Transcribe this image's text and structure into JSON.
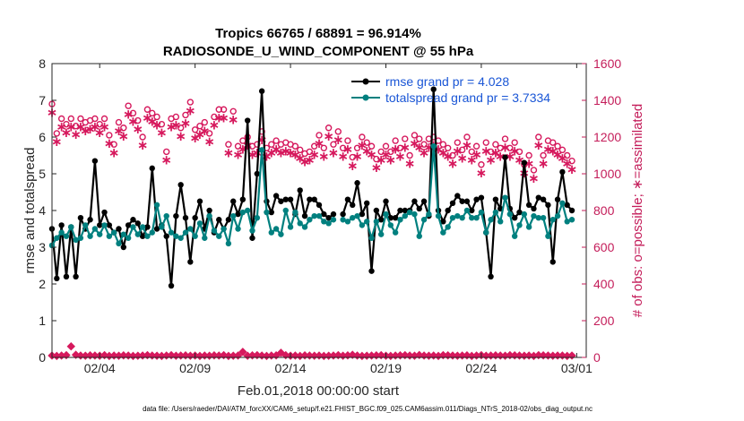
{
  "chart_data": {
    "type": "line",
    "title": "Tropics 66765 / 68891 = 96.914%",
    "subtitle": "RADIOSONDE_U_WIND_COMPONENT @ 55 hPa",
    "xlabel": "Feb.01,2018 00:00:00 start",
    "ylabel": "rmse and totalspread",
    "y2label": "# of obs: o=possible; ∗=assimilated",
    "footnote": "data file: /Users/raeder/DAI/ATM_forcXX/CAM6_setup/f.e21.FHIST_BGC.f09_025.CAM6assim.011/Diags_NTrS_2018-02/obs_diag_output.nc",
    "xlim": [
      1,
      29
    ],
    "ylim": [
      0,
      8
    ],
    "y2lim": [
      0,
      1600
    ],
    "xticks": [
      3.5,
      8.5,
      13.5,
      18.5,
      23.5,
      28.5
    ],
    "xticklabels": [
      "02/04",
      "02/09",
      "02/14",
      "02/19",
      "02/24",
      "03/01"
    ],
    "yticks": [
      0,
      1,
      2,
      3,
      4,
      5,
      6,
      7,
      8
    ],
    "y2ticks": [
      0,
      200,
      400,
      600,
      800,
      1000,
      1200,
      1400,
      1600
    ],
    "grid": false,
    "legend_location": "top-right",
    "colors": {
      "rmse": "#000000",
      "spread": "#00807f",
      "obs": "#d6195d",
      "axis_right": "#c41d5a",
      "legend_text": "#1a56d6"
    },
    "series": [
      {
        "name": "rmse grand pr = 4.028",
        "key": "rmse",
        "x": [
          1.0,
          1.25,
          1.5,
          1.75,
          2.0,
          2.25,
          2.5,
          2.75,
          3.0,
          3.25,
          3.5,
          3.75,
          4.0,
          4.25,
          4.5,
          4.75,
          5.0,
          5.25,
          5.5,
          5.75,
          6.0,
          6.25,
          6.5,
          6.75,
          7.0,
          7.25,
          7.5,
          7.75,
          8.0,
          8.25,
          8.5,
          8.75,
          9.0,
          9.25,
          9.5,
          9.75,
          10.0,
          10.25,
          10.5,
          10.75,
          11.0,
          11.25,
          11.5,
          11.75,
          12.0,
          12.25,
          12.5,
          12.75,
          13.0,
          13.25,
          13.5,
          13.75,
          14.0,
          14.25,
          14.5,
          14.75,
          15.0,
          15.25,
          15.5,
          15.75,
          16.0,
          16.25,
          16.5,
          16.75,
          17.0,
          17.25,
          17.5,
          17.75,
          18.0,
          18.25,
          18.5,
          18.75,
          19.0,
          19.25,
          19.5,
          19.75,
          20.0,
          20.25,
          20.5,
          20.75,
          21.0,
          21.25,
          21.5,
          21.75,
          22.0,
          22.25,
          22.5,
          22.75,
          23.0,
          23.25,
          23.5,
          23.75,
          24.0,
          24.25,
          24.5,
          24.75,
          25.0,
          25.25,
          25.5,
          25.75,
          26.0,
          26.25,
          26.5,
          26.75,
          27.0,
          27.25,
          27.5,
          27.75,
          28.0,
          28.25
        ],
        "y": [
          3.5,
          2.15,
          3.6,
          2.2,
          3.55,
          2.2,
          3.8,
          3.5,
          3.75,
          5.35,
          3.6,
          3.95,
          3.6,
          3.4,
          3.5,
          3.0,
          3.6,
          3.75,
          3.65,
          3.3,
          3.55,
          5.15,
          3.5,
          3.6,
          3.3,
          1.95,
          3.85,
          4.7,
          3.8,
          2.6,
          3.8,
          4.25,
          3.5,
          4.0,
          3.4,
          3.75,
          3.5,
          3.75,
          4.25,
          3.9,
          4.3,
          6.45,
          3.25,
          5.0,
          7.25,
          4.25,
          3.95,
          4.4,
          4.25,
          4.3,
          4.3,
          3.9,
          4.55,
          3.85,
          4.3,
          4.3,
          4.15,
          3.9,
          3.8,
          3.9,
          null,
          3.9,
          4.3,
          4.15,
          4.75,
          3.9,
          4.2,
          2.35,
          4.0,
          3.75,
          4.25,
          3.8,
          3.8,
          4.0,
          4.0,
          4.0,
          4.25,
          4.05,
          4.25,
          3.85,
          7.3,
          4.0,
          3.7,
          4.0,
          4.2,
          4.4,
          4.25,
          4.25,
          4.0,
          4.3,
          4.35,
          3.4,
          2.2,
          4.3,
          4.05,
          5.45,
          4.05,
          3.8,
          3.95,
          5.3,
          4.15,
          4.05,
          4.35,
          4.3,
          4.15,
          2.6,
          4.3,
          5.05,
          4.15,
          4.0
        ]
      },
      {
        "name": "totalspread grand pr = 3.7334",
        "key": "spread",
        "x": [
          1.0,
          1.25,
          1.5,
          1.75,
          2.0,
          2.25,
          2.5,
          2.75,
          3.0,
          3.25,
          3.5,
          3.75,
          4.0,
          4.25,
          4.5,
          4.75,
          5.0,
          5.25,
          5.5,
          5.75,
          6.0,
          6.25,
          6.5,
          6.75,
          7.0,
          7.25,
          7.5,
          7.75,
          8.0,
          8.25,
          8.5,
          8.75,
          9.0,
          9.25,
          9.5,
          9.75,
          10.0,
          10.25,
          10.5,
          10.75,
          11.0,
          11.25,
          11.5,
          11.75,
          12.0,
          12.25,
          12.5,
          12.75,
          13.0,
          13.25,
          13.5,
          13.75,
          14.0,
          14.25,
          14.5,
          14.75,
          15.0,
          15.25,
          15.5,
          15.75,
          16.0,
          16.25,
          16.5,
          16.75,
          17.0,
          17.25,
          17.5,
          17.75,
          18.0,
          18.25,
          18.5,
          18.75,
          19.0,
          19.25,
          19.5,
          19.75,
          20.0,
          20.25,
          20.5,
          20.75,
          21.0,
          21.25,
          21.5,
          21.75,
          22.0,
          22.25,
          22.5,
          22.75,
          23.0,
          23.25,
          23.5,
          23.75,
          24.0,
          24.25,
          24.5,
          24.75,
          25.0,
          25.25,
          25.5,
          25.75,
          26.0,
          26.25,
          26.5,
          26.75,
          27.0,
          27.25,
          27.5,
          27.75,
          28.0,
          28.25
        ],
        "y": [
          3.05,
          3.25,
          3.4,
          3.3,
          3.55,
          3.2,
          3.25,
          3.6,
          3.3,
          3.5,
          3.35,
          3.6,
          3.3,
          3.4,
          3.1,
          3.35,
          3.25,
          3.55,
          3.35,
          3.55,
          3.3,
          3.4,
          4.15,
          3.55,
          3.85,
          3.4,
          3.3,
          3.25,
          3.4,
          3.5,
          3.3,
          3.65,
          3.25,
          3.85,
          3.45,
          3.3,
          3.5,
          3.1,
          3.85,
          3.5,
          3.95,
          4.0,
          3.45,
          3.8,
          5.65,
          3.95,
          3.4,
          3.5,
          3.35,
          4.0,
          3.55,
          3.95,
          3.65,
          3.55,
          3.75,
          3.85,
          3.85,
          3.7,
          3.65,
          3.75,
          null,
          3.75,
          3.7,
          3.8,
          3.85,
          3.6,
          3.7,
          3.25,
          3.7,
          3.35,
          3.9,
          3.6,
          3.4,
          3.75,
          3.85,
          3.95,
          3.9,
          3.3,
          3.75,
          3.9,
          5.75,
          3.85,
          3.4,
          3.55,
          3.8,
          3.85,
          3.8,
          4.0,
          3.8,
          3.8,
          3.95,
          3.4,
          3.75,
          3.95,
          3.7,
          4.35,
          3.9,
          3.3,
          3.6,
          3.9,
          3.55,
          3.85,
          3.8,
          3.8,
          3.3,
          3.75,
          3.85,
          4.2,
          3.7,
          3.75
        ]
      },
      {
        "name": "obs possible",
        "key": "possible",
        "axis": "right",
        "x": [
          1.0,
          1.25,
          1.5,
          1.75,
          2.0,
          2.25,
          2.5,
          2.75,
          3.0,
          3.25,
          3.5,
          3.75,
          4.0,
          4.25,
          4.5,
          4.75,
          5.0,
          5.25,
          5.5,
          5.75,
          6.0,
          6.25,
          6.5,
          6.75,
          7.0,
          7.25,
          7.5,
          7.75,
          8.0,
          8.25,
          8.5,
          8.75,
          9.0,
          9.25,
          9.5,
          9.75,
          10.0,
          10.25,
          10.5,
          10.75,
          11.0,
          11.25,
          11.5,
          11.75,
          12.0,
          12.25,
          12.5,
          12.75,
          13.0,
          13.25,
          13.5,
          13.75,
          14.0,
          14.25,
          14.5,
          14.75,
          15.0,
          15.25,
          15.5,
          15.75,
          16.0,
          16.25,
          16.5,
          16.75,
          17.0,
          17.25,
          17.5,
          17.75,
          18.0,
          18.25,
          18.5,
          18.75,
          19.0,
          19.25,
          19.5,
          19.75,
          20.0,
          20.25,
          20.5,
          20.75,
          21.0,
          21.25,
          21.5,
          21.75,
          22.0,
          22.25,
          22.5,
          22.75,
          23.0,
          23.25,
          23.5,
          23.75,
          24.0,
          24.25,
          24.5,
          24.75,
          25.0,
          25.25,
          25.5,
          25.75,
          26.0,
          26.25,
          26.5,
          26.75,
          27.0,
          27.25,
          27.5,
          27.75,
          28.0,
          28.25
        ],
        "y": [
          1380,
          1220,
          1300,
          1270,
          1300,
          1260,
          1300,
          1280,
          1290,
          1300,
          1270,
          1300,
          1210,
          1160,
          1280,
          1250,
          1370,
          1330,
          1290,
          1200,
          1350,
          1330,
          1310,
          1270,
          1120,
          1300,
          1310,
          1250,
          1320,
          1390,
          1240,
          1260,
          1280,
          1220,
          1310,
          1350,
          1350,
          1160,
          1340,
          1150,
          1180,
          1200,
          1150,
          1160,
          1230,
          1140,
          1160,
          1180,
          1160,
          1170,
          1160,
          1150,
          1130,
          1110,
          1120,
          1150,
          1210,
          1140,
          1250,
          1160,
          1230,
          1140,
          1180,
          1090,
          1140,
          1200,
          1170,
          1150,
          1080,
          1120,
          1150,
          1120,
          1180,
          1140,
          1190,
          1100,
          1210,
          1190,
          1160,
          1190,
          1200,
          1180,
          1160,
          1140,
          1100,
          1170,
          1130,
          1200,
          1120,
          1150,
          1050,
          1170,
          1120,
          1160,
          1140,
          1190,
          1140,
          1170,
          1120,
          1050,
          1100,
          1020,
          1200,
          1100,
          1180,
          1170,
          1150,
          1130,
          1100,
          1070
        ]
      },
      {
        "name": "obs assimilated",
        "key": "assimilated",
        "axis": "right",
        "x": [
          1.0,
          1.25,
          1.5,
          1.75,
          2.0,
          2.25,
          2.5,
          2.75,
          3.0,
          3.25,
          3.5,
          3.75,
          4.0,
          4.25,
          4.5,
          4.75,
          5.0,
          5.25,
          5.5,
          5.75,
          6.0,
          6.25,
          6.5,
          6.75,
          7.0,
          7.25,
          7.5,
          7.75,
          8.0,
          8.25,
          8.5,
          8.75,
          9.0,
          9.25,
          9.5,
          9.75,
          10.0,
          10.25,
          10.5,
          10.75,
          11.0,
          11.25,
          11.5,
          11.75,
          12.0,
          12.25,
          12.5,
          12.75,
          13.0,
          13.25,
          13.5,
          13.75,
          14.0,
          14.25,
          14.5,
          14.75,
          15.0,
          15.25,
          15.5,
          15.75,
          16.0,
          16.25,
          16.5,
          16.75,
          17.0,
          17.25,
          17.5,
          17.75,
          18.0,
          18.25,
          18.5,
          18.75,
          19.0,
          19.25,
          19.5,
          19.75,
          20.0,
          20.25,
          20.5,
          20.75,
          21.0,
          21.25,
          21.5,
          21.75,
          22.0,
          22.25,
          22.5,
          22.75,
          23.0,
          23.25,
          23.5,
          23.75,
          24.0,
          24.25,
          24.5,
          24.75,
          25.0,
          25.25,
          25.5,
          25.75,
          26.0,
          26.25,
          26.5,
          26.75,
          27.0,
          27.25,
          27.5,
          27.75,
          28.0,
          28.25
        ],
        "y": [
          1340,
          1180,
          1260,
          1230,
          1260,
          1220,
          1260,
          1240,
          1250,
          1260,
          1230,
          1260,
          1170,
          1120,
          1240,
          1210,
          1330,
          1290,
          1250,
          1160,
          1310,
          1290,
          1270,
          1230,
          1080,
          1260,
          1270,
          1210,
          1280,
          1350,
          1200,
          1220,
          1240,
          1180,
          1270,
          1310,
          1310,
          1120,
          1300,
          1110,
          1140,
          1160,
          1110,
          1120,
          1190,
          1100,
          1120,
          1140,
          1120,
          1130,
          1120,
          1110,
          1090,
          1070,
          1080,
          1110,
          1170,
          1100,
          1210,
          1120,
          1190,
          1100,
          1140,
          1050,
          1100,
          1160,
          1130,
          1110,
          1040,
          1080,
          1110,
          1080,
          1140,
          1100,
          1150,
          1060,
          1170,
          1150,
          1120,
          1150,
          1160,
          1140,
          1120,
          1100,
          1060,
          1130,
          1090,
          1160,
          1080,
          1110,
          1010,
          1130,
          1080,
          1120,
          1100,
          1150,
          1100,
          1130,
          1080,
          1010,
          1060,
          980,
          1160,
          1060,
          1140,
          1130,
          1110,
          1090,
          1060,
          1030
        ]
      },
      {
        "name": "obs rejected",
        "key": "rejected",
        "axis": "right",
        "x": [
          1.0,
          1.25,
          1.5,
          1.75,
          2.0,
          2.25,
          2.5,
          2.75,
          3.0,
          3.25,
          3.5,
          3.75,
          4.0,
          4.25,
          4.5,
          4.75,
          5.0,
          5.25,
          5.5,
          5.75,
          6.0,
          6.25,
          6.5,
          6.75,
          7.0,
          7.25,
          7.5,
          7.75,
          8.0,
          8.25,
          8.5,
          8.75,
          9.0,
          9.25,
          9.5,
          9.75,
          10.0,
          10.25,
          10.5,
          10.75,
          11.0,
          11.25,
          11.5,
          11.75,
          12.0,
          12.25,
          12.5,
          12.75,
          13.0,
          13.25,
          13.5,
          13.75,
          14.0,
          14.25,
          14.5,
          14.75,
          15.0,
          15.25,
          15.5,
          15.75,
          16.0,
          16.25,
          16.5,
          16.75,
          17.0,
          17.25,
          17.5,
          17.75,
          18.0,
          18.25,
          18.5,
          18.75,
          19.0,
          19.25,
          19.5,
          19.75,
          20.0,
          20.25,
          20.5,
          20.75,
          21.0,
          21.25,
          21.5,
          21.75,
          22.0,
          22.25,
          22.5,
          22.75,
          23.0,
          23.25,
          23.5,
          23.75,
          24.0,
          24.25,
          24.5,
          24.75,
          25.0,
          25.25,
          25.5,
          25.75,
          26.0,
          26.25,
          26.5,
          26.75,
          27.0,
          27.25,
          27.5,
          27.75,
          28.0,
          28.25
        ],
        "y": [
          10,
          8,
          10,
          12,
          60,
          14,
          10,
          9,
          11,
          10,
          9,
          12,
          8,
          10,
          9,
          11,
          10,
          8,
          9,
          10,
          12,
          10,
          9,
          8,
          10,
          12,
          9,
          10,
          11,
          9,
          10,
          8,
          10,
          9,
          11,
          10,
          12,
          8,
          9,
          10,
          30,
          9,
          11,
          12,
          10,
          8,
          10,
          11,
          25,
          12,
          9,
          10,
          8,
          11,
          10,
          9,
          10,
          8,
          9,
          10,
          12,
          9,
          11,
          14,
          10,
          8,
          9,
          10,
          11,
          12,
          9,
          8,
          10,
          11,
          12,
          10,
          9,
          13,
          10,
          9,
          10,
          8,
          12,
          11,
          10,
          9,
          10,
          11,
          8,
          10,
          12,
          9,
          10,
          11,
          10,
          9,
          12,
          11,
          10,
          9,
          10,
          8,
          12,
          11,
          10,
          9,
          10,
          10,
          8,
          10
        ]
      }
    ]
  }
}
